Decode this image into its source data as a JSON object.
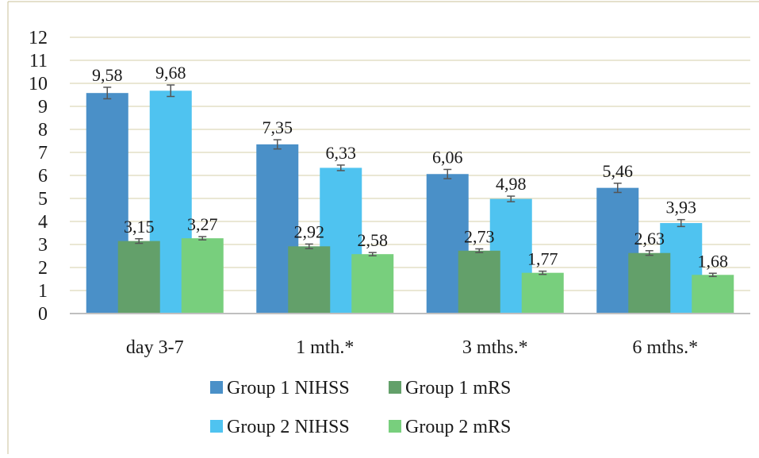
{
  "chart_data": {
    "type": "bar",
    "title": "",
    "xlabel": "",
    "ylabel": "",
    "ylim": [
      0,
      12
    ],
    "yticks": [
      "0",
      "1",
      "2",
      "3",
      "4",
      "5",
      "6",
      "7",
      "8",
      "9",
      "10",
      "11",
      "12"
    ],
    "grid": true,
    "legend_position": "bottom",
    "categories": [
      "day 3-7",
      "1 mth.*",
      "3 mths.*",
      "6 mths.*"
    ],
    "series": [
      {
        "name": "Group 1 NIHSS",
        "color": "#4a90c8",
        "values": [
          9.58,
          7.35,
          6.06,
          5.46
        ],
        "labels": [
          "9,58",
          "7,35",
          "6,06",
          "5,46"
        ],
        "errors": [
          0.25,
          0.2,
          0.2,
          0.2
        ]
      },
      {
        "name": "Group 1 mRS",
        "color": "#63a06a",
        "values": [
          3.15,
          2.92,
          2.73,
          2.63
        ],
        "labels": [
          "3,15",
          "2,92",
          "2,73",
          "2,63"
        ],
        "errors": [
          0.1,
          0.1,
          0.08,
          0.1
        ]
      },
      {
        "name": "Group 2 NIHSS",
        "color": "#4fc3f0",
        "values": [
          9.68,
          6.33,
          4.98,
          3.93
        ],
        "labels": [
          "9,68",
          "6,33",
          "4,98",
          "3,93"
        ],
        "errors": [
          0.25,
          0.12,
          0.12,
          0.15
        ]
      },
      {
        "name": "Group 2 mRS",
        "color": "#78cf7d",
        "values": [
          3.27,
          2.58,
          1.77,
          1.68
        ],
        "labels": [
          "3,27",
          "2,58",
          "1,77",
          "1,68"
        ],
        "errors": [
          0.07,
          0.07,
          0.07,
          0.07
        ]
      }
    ]
  }
}
